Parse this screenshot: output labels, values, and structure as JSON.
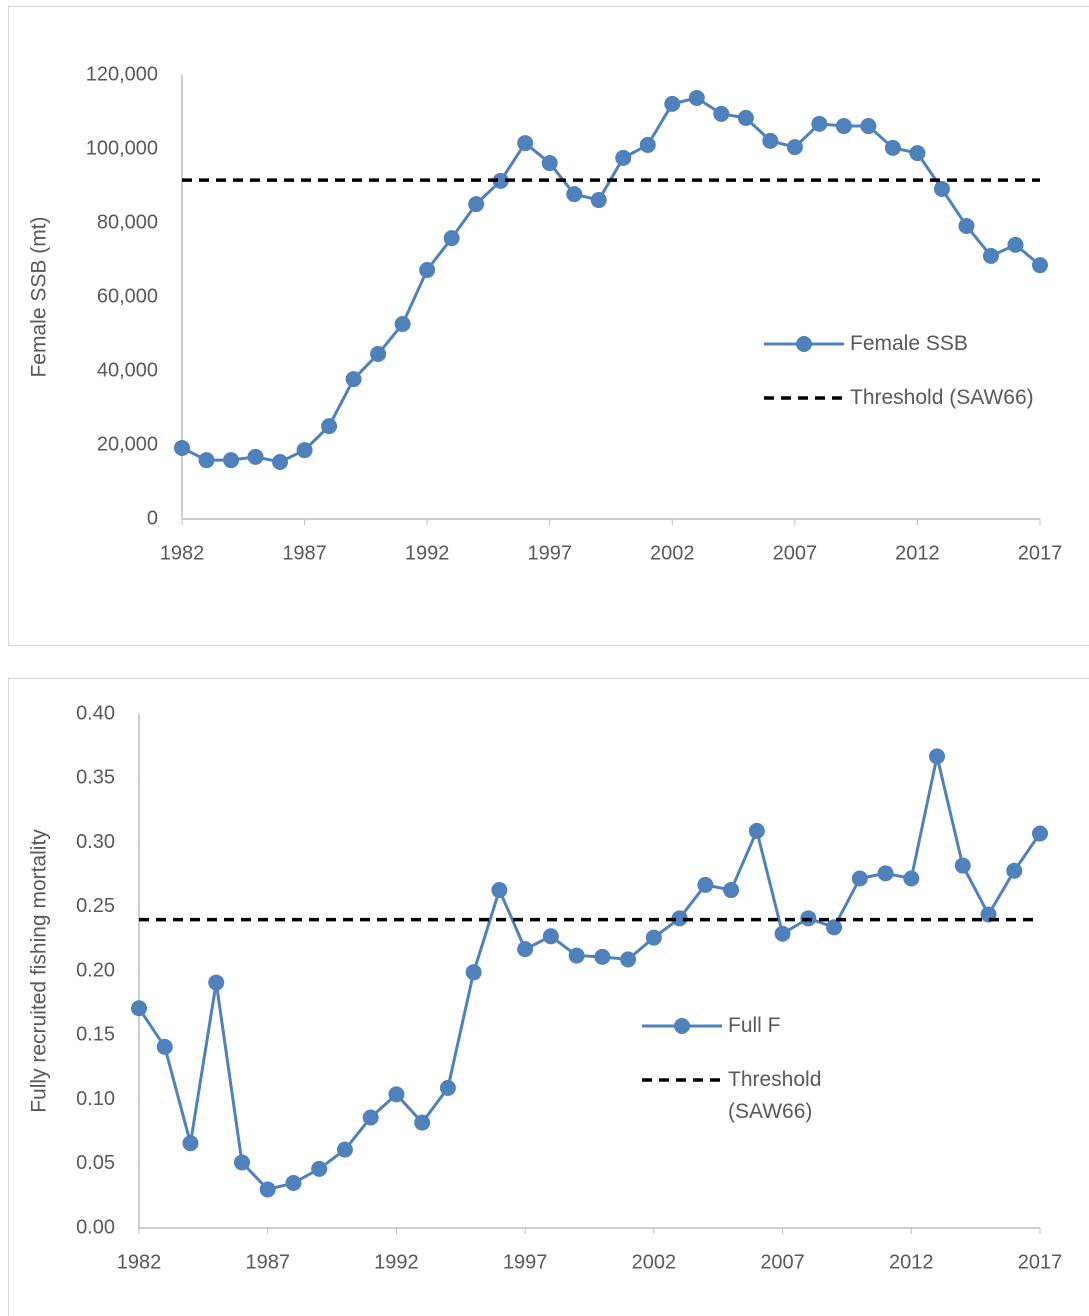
{
  "chart_data": [
    {
      "type": "line",
      "y_label": "Female SSB (mt)",
      "x": [
        1982,
        1983,
        1984,
        1985,
        1986,
        1987,
        1988,
        1989,
        1990,
        1991,
        1992,
        1993,
        1994,
        1995,
        1996,
        1997,
        1998,
        1999,
        2000,
        2001,
        2002,
        2003,
        2004,
        2005,
        2006,
        2007,
        2008,
        2009,
        2010,
        2011,
        2012,
        2013,
        2014,
        2015,
        2016,
        2017
      ],
      "xlim": [
        1982,
        2017
      ],
      "xticks": [
        1982,
        1987,
        1992,
        1997,
        2002,
        2007,
        2012,
        2017
      ],
      "ylim": [
        0,
        120000
      ],
      "yticks": [
        0,
        {
          "value": 20000,
          "label": "20,000"
        },
        {
          "value": 40000,
          "label": "40,000"
        },
        {
          "value": 60000,
          "label": "60,000"
        },
        {
          "value": 80000,
          "label": "80,000"
        },
        {
          "value": 100000,
          "label": "100,000"
        },
        {
          "value": 120000,
          "label": "120,000"
        }
      ],
      "grid": false,
      "series": [
        {
          "name": "Female SSB",
          "color": "#4f81bd",
          "markers": true,
          "values": [
            19200,
            15900,
            15900,
            16800,
            15400,
            18600,
            25100,
            37800,
            44600,
            52700,
            67300,
            75900,
            85100,
            91400,
            101600,
            96200,
            87800,
            86200,
            97600,
            101100,
            112200,
            113800,
            109500,
            108400,
            102200,
            100500,
            106800,
            106200,
            106200,
            100300,
            98900,
            89200,
            79200,
            71100,
            74100,
            68600
          ]
        },
        {
          "name": "Threshold (SAW66)",
          "color": "#000000",
          "dashed": true,
          "values": [
            91600,
            91600,
            91600,
            91600,
            91600,
            91600,
            91600,
            91600,
            91600,
            91600,
            91600,
            91600,
            91600,
            91600,
            91600,
            91600,
            91600,
            91600,
            91600,
            91600,
            91600,
            91600,
            91600,
            91600,
            91600,
            91600,
            91600,
            91600,
            91600,
            91600,
            91600,
            91600,
            91600,
            91600,
            91600,
            91600
          ]
        }
      ]
    },
    {
      "type": "line",
      "y_label": "Fully recruited fishing mortality",
      "x": [
        1982,
        1983,
        1984,
        1985,
        1986,
        1987,
        1988,
        1989,
        1990,
        1991,
        1992,
        1993,
        1994,
        1995,
        1996,
        1997,
        1998,
        1999,
        2000,
        2001,
        2002,
        2003,
        2004,
        2005,
        2006,
        2007,
        2008,
        2009,
        2010,
        2011,
        2012,
        2013,
        2014,
        2015,
        2016,
        2017
      ],
      "xlim": [
        1982,
        2017
      ],
      "xticks": [
        1982,
        1987,
        1992,
        1997,
        2002,
        2007,
        2012,
        2017
      ],
      "ylim": [
        0,
        0.4
      ],
      "yticks": [
        {
          "value": 0,
          "label": "0.00"
        },
        0.05,
        {
          "value": 0.1,
          "label": "0.10"
        },
        0.15,
        {
          "value": 0.2,
          "label": "0.20"
        },
        0.25,
        {
          "value": 0.3,
          "label": "0.30"
        },
        0.35,
        {
          "value": 0.4,
          "label": "0.40"
        }
      ],
      "grid": false,
      "series": [
        {
          "name": "Full F",
          "color": "#4f81bd",
          "markers": true,
          "values": [
            0.171,
            0.141,
            0.066,
            0.191,
            0.051,
            0.03,
            0.035,
            0.046,
            0.061,
            0.086,
            0.104,
            0.082,
            0.109,
            0.199,
            0.263,
            0.217,
            0.227,
            0.212,
            0.211,
            0.209,
            0.226,
            0.241,
            0.267,
            0.263,
            0.309,
            0.229,
            0.241,
            0.234,
            0.272,
            0.276,
            0.272,
            0.367,
            0.282,
            0.244,
            0.278,
            0.307
          ]
        },
        {
          "name": "Threshold (SAW66)",
          "color": "#000000",
          "dashed": true,
          "values": [
            0.24,
            0.24,
            0.24,
            0.24,
            0.24,
            0.24,
            0.24,
            0.24,
            0.24,
            0.24,
            0.24,
            0.24,
            0.24,
            0.24,
            0.24,
            0.24,
            0.24,
            0.24,
            0.24,
            0.24,
            0.24,
            0.24,
            0.24,
            0.24,
            0.24,
            0.24,
            0.24,
            0.24,
            0.24,
            0.24,
            0.24,
            0.24,
            0.24,
            0.24,
            0.24,
            0.24
          ]
        }
      ]
    }
  ]
}
